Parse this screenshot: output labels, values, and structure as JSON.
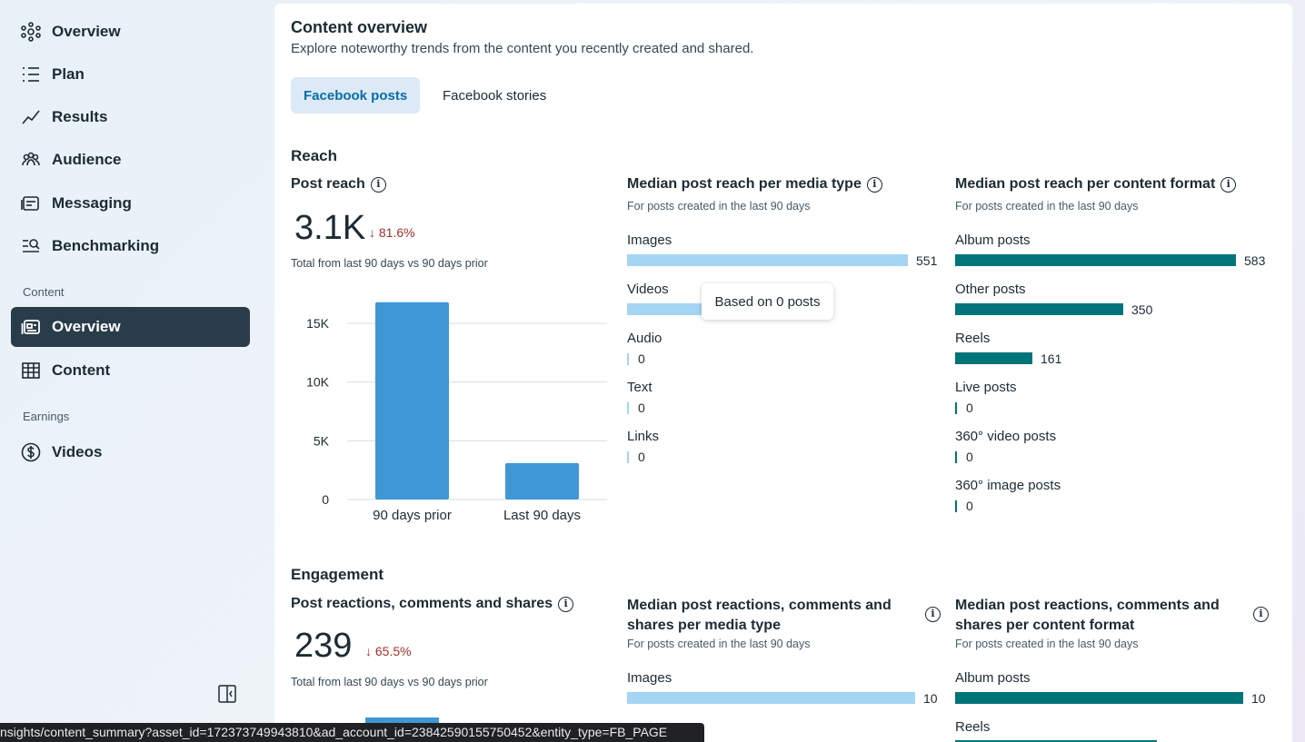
{
  "sidebar": {
    "items_top": [
      {
        "label": "Overview",
        "icon": "network-icon"
      },
      {
        "label": "Plan",
        "icon": "list-icon"
      },
      {
        "label": "Results",
        "icon": "trend-icon"
      },
      {
        "label": "Audience",
        "icon": "people-icon"
      },
      {
        "label": "Messaging",
        "icon": "inbox-icon"
      },
      {
        "label": "Benchmarking",
        "icon": "benchmark-icon"
      }
    ],
    "section_content": "Content",
    "content_items": [
      {
        "label": "Overview",
        "icon": "content-overview-icon"
      },
      {
        "label": "Content",
        "icon": "table-icon"
      }
    ],
    "section_earnings": "Earnings",
    "earnings_items": [
      {
        "label": "Videos",
        "icon": "dollar-icon"
      }
    ]
  },
  "header": {
    "title": "Content overview",
    "subtitle": "Explore noteworthy trends from the content you recently created and shared."
  },
  "tabs": [
    {
      "label": "Facebook posts"
    },
    {
      "label": "Facebook stories"
    }
  ],
  "reach": {
    "section_title": "Reach",
    "post_reach": {
      "title": "Post reach",
      "value": "3.1K",
      "delta": "81.6%",
      "note": "Total from last 90 days vs 90 days prior"
    },
    "media_type": {
      "title": "Median post reach per media type",
      "subtitle": "For posts created in the last 90 days",
      "rows": [
        {
          "label": "Images",
          "value": "551"
        },
        {
          "label": "Videos",
          "value": ""
        },
        {
          "label": "Audio",
          "value": "0"
        },
        {
          "label": "Text",
          "value": "0"
        },
        {
          "label": "Links",
          "value": "0"
        }
      ],
      "tooltip": "Based on 0 posts"
    },
    "content_format": {
      "title": "Median post reach per content format",
      "subtitle": "For posts created in the last 90 days",
      "rows": [
        {
          "label": "Album posts",
          "value": "583"
        },
        {
          "label": "Other posts",
          "value": "350"
        },
        {
          "label": "Reels",
          "value": "161"
        },
        {
          "label": "Live posts",
          "value": "0"
        },
        {
          "label": "360° video posts",
          "value": "0"
        },
        {
          "label": "360° image posts",
          "value": "0"
        }
      ]
    }
  },
  "engagement": {
    "section_title": "Engagement",
    "post_rcs": {
      "title": "Post reactions, comments and shares",
      "value": "239",
      "delta": "65.5%",
      "note": "Total from last 90 days vs 90 days prior"
    },
    "media_type": {
      "title_line1": "Median post reactions, comments and",
      "title_line2": "shares per media type",
      "subtitle": "For posts created in the last 90 days",
      "rows": [
        {
          "label": "Images",
          "value": "10"
        }
      ]
    },
    "content_format": {
      "title_line1": "Median post reactions, comments and",
      "title_line2": "shares per content format",
      "subtitle": "For posts created in the last 90 days",
      "rows": [
        {
          "label": "Album posts",
          "value": "10"
        },
        {
          "label": "Reels",
          "value": ""
        }
      ]
    }
  },
  "chart_data": {
    "type": "bar",
    "title": "Post reach",
    "categories": [
      "90 days prior",
      "Last 90 days"
    ],
    "values": [
      16800,
      3100
    ],
    "yticks": [
      "0",
      "5K",
      "10K",
      "15K"
    ],
    "ytick_values": [
      0,
      5000,
      10000,
      15000
    ],
    "ylim": [
      0,
      15000
    ],
    "color": "#3f97d6"
  },
  "statusbar": {
    "url": "nsights/content_summary?asset_id=172373749943810&ad_account_id=23842590155750452&entity_type=FB_PAGE"
  }
}
